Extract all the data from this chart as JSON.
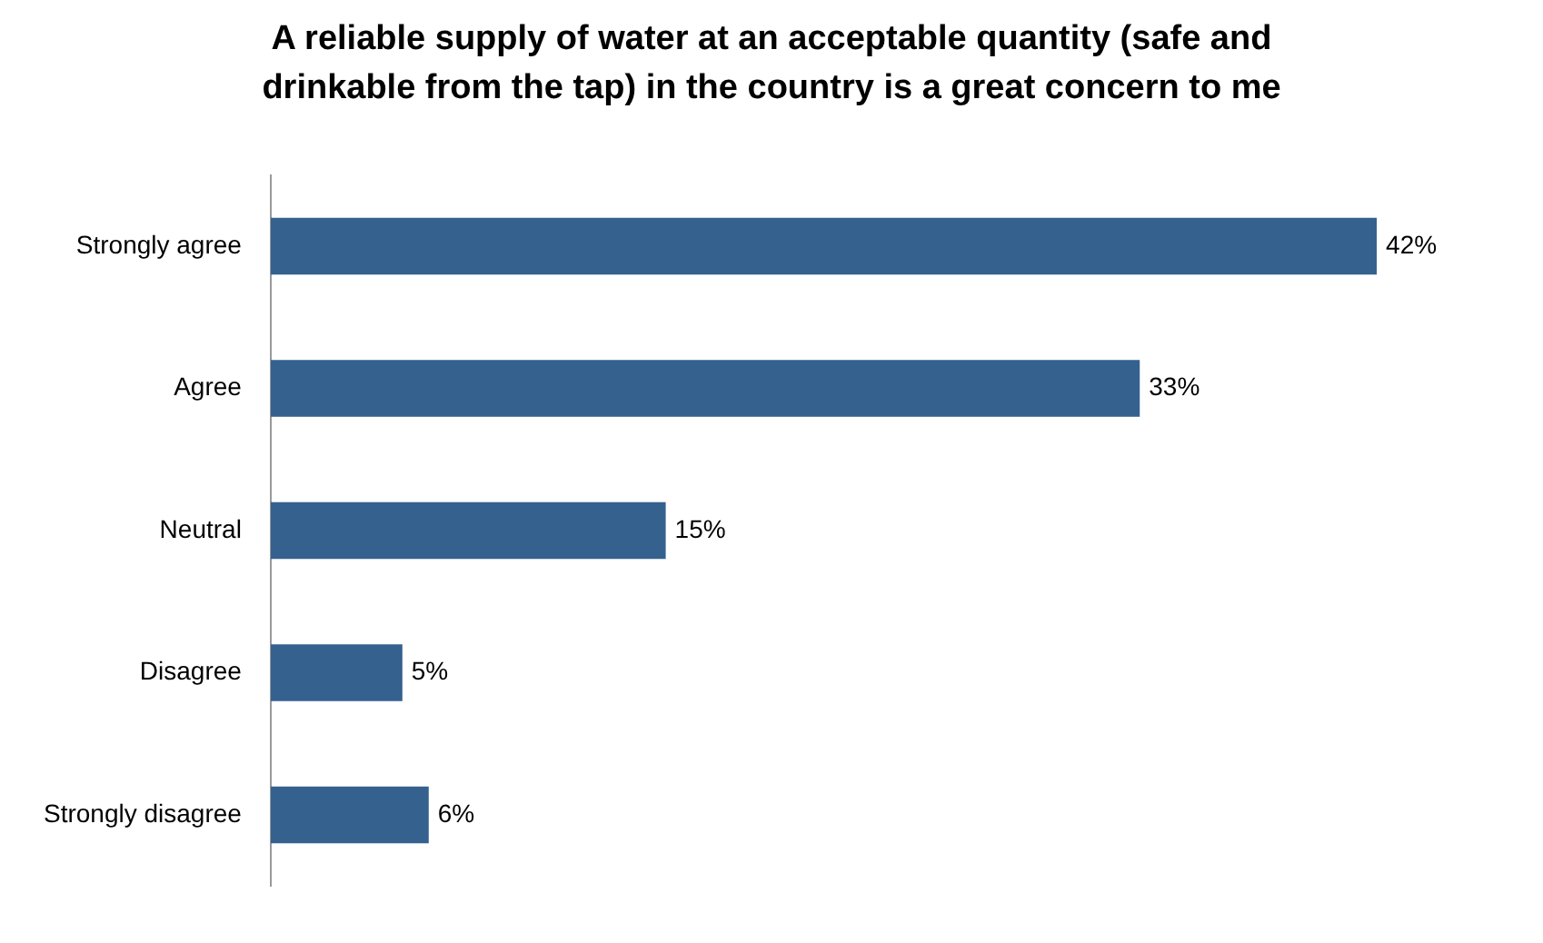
{
  "chart_data": {
    "type": "bar",
    "orientation": "horizontal",
    "title": "A reliable supply of water at an acceptable quantity (safe and drinkable from the tap) in the country is a great concern to me",
    "categories": [
      "Strongly agree",
      "Agree",
      "Neutral",
      "Disagree",
      "Strongly disagree"
    ],
    "values": [
      42,
      33,
      15,
      5,
      6
    ],
    "value_labels": [
      "42%",
      "33%",
      "15%",
      "5%",
      "6%"
    ],
    "color": "#35618f"
  }
}
